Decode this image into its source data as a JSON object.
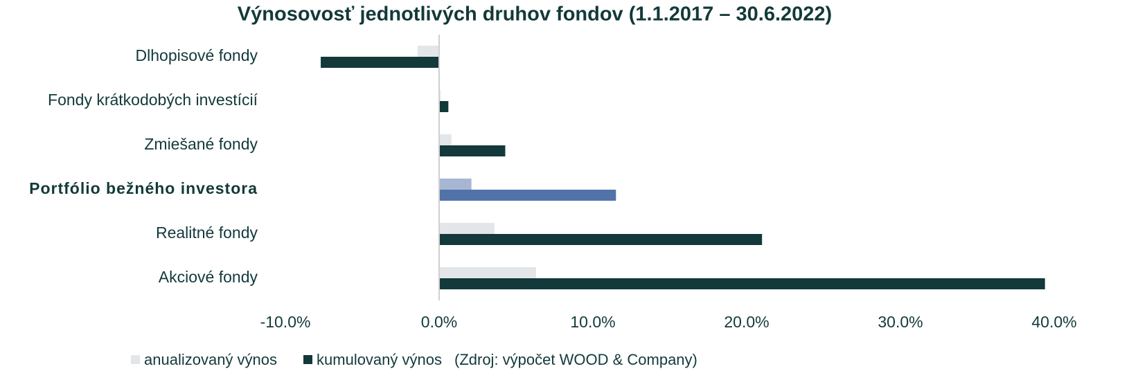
{
  "chart_data": {
    "type": "bar",
    "orientation": "horizontal",
    "title": "Výnosovosť jednotlivých druhov fondov (1.1.2017 – 30.6.2022)",
    "categories": [
      "Dlhopisové fondy",
      "Fondy krátkodobých investícií",
      "Zmiešané fondy",
      "Portfólio bežného investora",
      "Realitné fondy",
      "Akciové fondy"
    ],
    "bold_categories": [
      false,
      false,
      false,
      true,
      false,
      false
    ],
    "series": [
      {
        "name": "anualizovaný výnos",
        "color": "#e3e6e8",
        "colors": [
          "#e3e6e8",
          "#e3e6e8",
          "#e3e6e8",
          "#a7b7d3",
          "#e3e6e8",
          "#e3e6e8"
        ],
        "values": [
          -1.4,
          0.1,
          0.8,
          2.1,
          3.6,
          6.3
        ]
      },
      {
        "name": "kumulovaný výnos",
        "color": "#13393a",
        "colors": [
          "#13393a",
          "#13393a",
          "#13393a",
          "#5173aa",
          "#13393a",
          "#13393a"
        ],
        "values": [
          -7.7,
          0.6,
          4.3,
          11.5,
          21.0,
          39.4
        ]
      }
    ],
    "xlim": [
      -10,
      40
    ],
    "xticks": [
      {
        "value": -10,
        "label": "-10.0%"
      },
      {
        "value": 0,
        "label": "0.0%"
      },
      {
        "value": 10,
        "label": "10.0%"
      },
      {
        "value": 20,
        "label": "20.0%"
      },
      {
        "value": 30,
        "label": "30.0%"
      },
      {
        "value": 40,
        "label": "40.0%"
      }
    ],
    "note": "(Zdroj: výpočet WOOD & Company)",
    "legend": "bottom"
  }
}
